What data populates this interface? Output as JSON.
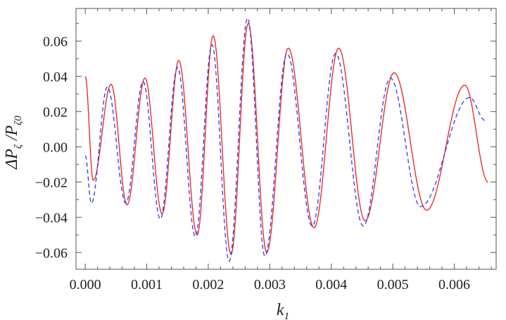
{
  "chart_data": {
    "type": "line",
    "title": "",
    "xlabel": "k",
    "xlabel_sub": "1",
    "ylabel": "ΔP",
    "ylabel_sub1": "ζ",
    "ylabel_mid": " /P",
    "ylabel_sub2": "ζ0",
    "xlim": [
      -0.00015,
      0.00668
    ],
    "ylim": [
      -0.0695,
      0.0785
    ],
    "x_ticks": [
      0.0,
      0.001,
      0.002,
      0.003,
      0.004,
      0.005,
      0.006
    ],
    "x_tick_labels": [
      "0.000",
      "0.001",
      "0.002",
      "0.003",
      "0.004",
      "0.005",
      "0.006"
    ],
    "y_ticks": [
      -0.06,
      -0.04,
      -0.02,
      0.0,
      0.02,
      0.04,
      0.06
    ],
    "y_tick_labels": [
      "−0.06",
      "−0.04",
      "−0.02",
      "0.00",
      "0.02",
      "0.04",
      "0.06"
    ],
    "grid": false,
    "legend": "none",
    "series": [
      {
        "color": "#e8201f",
        "style": "solid",
        "x": [
          0.0,
          0.00013,
          0.00042,
          0.00068,
          0.00097,
          0.00125,
          0.00152,
          0.00182,
          0.00208,
          0.00237,
          0.00265,
          0.00295,
          0.0033,
          0.00372,
          0.00412,
          0.00455,
          0.00502,
          0.00555,
          0.00617,
          0.00655
        ],
        "y": [
          0.04,
          -0.019,
          0.0355,
          -0.033,
          0.039,
          -0.038,
          0.049,
          -0.05,
          0.063,
          -0.061,
          0.07,
          -0.06,
          0.056,
          -0.046,
          0.056,
          -0.042,
          0.042,
          -0.036,
          0.035,
          -0.02
        ]
      },
      {
        "color": "#2a3cf0",
        "style": "dashed",
        "x": [
          0.0,
          0.0001,
          0.00036,
          0.00066,
          0.00094,
          0.00122,
          0.0015,
          0.00179,
          0.00206,
          0.00234,
          0.00264,
          0.00292,
          0.00328,
          0.00369,
          0.00407,
          0.00452,
          0.00496,
          0.00545,
          0.00625,
          0.0065
        ],
        "y": [
          -0.005,
          -0.032,
          0.034,
          -0.032,
          0.037,
          -0.041,
          0.045,
          -0.051,
          0.058,
          -0.065,
          0.073,
          -0.062,
          0.053,
          -0.045,
          0.053,
          -0.045,
          0.039,
          -0.034,
          0.028,
          0.015
        ]
      }
    ]
  }
}
